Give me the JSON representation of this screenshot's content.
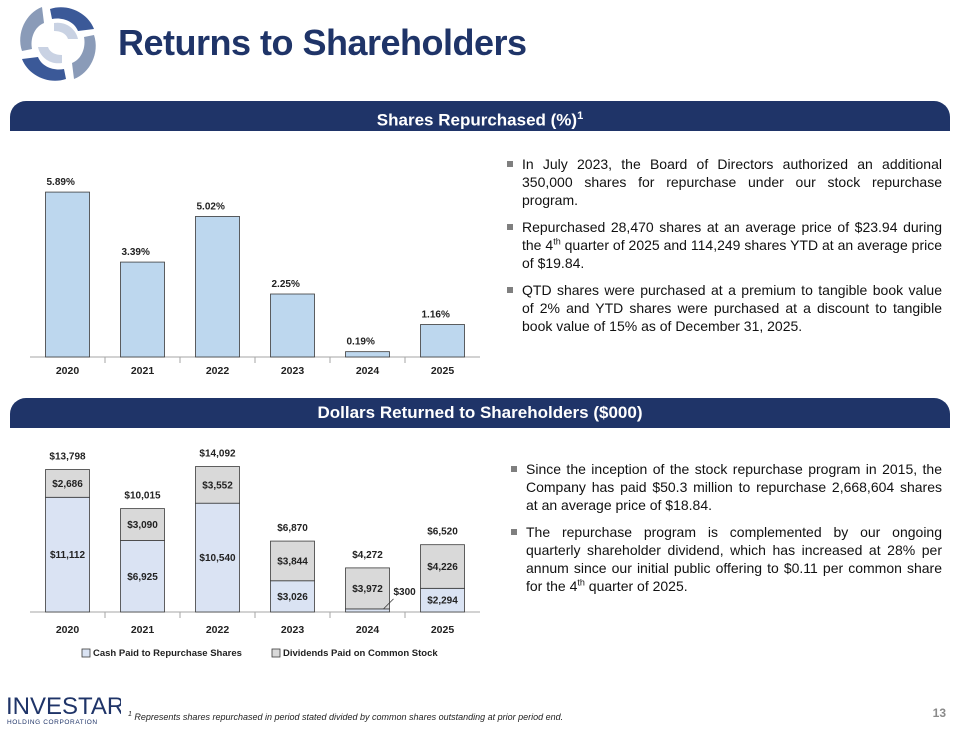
{
  "header": {
    "title": "Returns to Shareholders"
  },
  "section1": {
    "banner": "Shares Repurchased (%)",
    "banner_sup": "1",
    "bullets": [
      {
        "pre": "In July 2023, the Board of Directors authorized an additional 350,000 shares for repurchase under our stock repurchase program.",
        "sup": "",
        "post": ""
      },
      {
        "pre": "Repurchased 28,470 shares at an average price of $23.94 during the 4",
        "sup": "th",
        "post": " quarter of 2025 and 114,249 shares YTD at an average price of $19.84."
      },
      {
        "pre": "QTD shares were purchased at a premium to tangible book value of 2% and YTD shares were purchased at a discount to tangible book value of 15% as of December 31, 2025.",
        "sup": "",
        "post": ""
      }
    ]
  },
  "section2": {
    "banner": "Dollars Returned to Shareholders ($000)",
    "bullets": [
      {
        "pre": "Since the inception of the stock repurchase program in 2015, the Company has paid $50.3 million to repurchase 2,668,604 shares at an average price of $18.84.",
        "sup": "",
        "post": ""
      },
      {
        "pre": "The repurchase program is complemented by our ongoing quarterly shareholder dividend, which has increased at 28% per annum since our initial public offering to $0.11 per common share for the 4",
        "sup": "th",
        "post": " quarter of 2025."
      }
    ]
  },
  "footer": {
    "logo_text": "INVESTAR",
    "logo_sub": "HOLDING CORPORATION",
    "footnote_sup": "1",
    "footnote": " Represents shares repurchased in period stated divided by common shares outstanding at prior period end.",
    "page_number": "13"
  },
  "colors": {
    "navy": "#1f3468",
    "bar_blue": "#bdd7ee",
    "bar_cash": "#dae3f3",
    "bar_div": "#d9d9d9"
  },
  "chart_data": [
    {
      "type": "bar",
      "title": "Shares Repurchased (%)",
      "categories": [
        "2020",
        "2021",
        "2022",
        "2023",
        "2024",
        "2025"
      ],
      "values": [
        5.89,
        3.39,
        5.02,
        2.25,
        0.19,
        1.16
      ],
      "labels": [
        "5.89%",
        "3.39%",
        "5.02%",
        "2.25%",
        "0.19%",
        "1.16%"
      ],
      "ylim": [
        0,
        6.5
      ]
    },
    {
      "type": "bar",
      "stacked": true,
      "title": "Dollars Returned to Shareholders ($000)",
      "categories": [
        "2020",
        "2021",
        "2022",
        "2023",
        "2024",
        "2025"
      ],
      "series": [
        {
          "name": "Cash Paid to Repurchase Shares",
          "values": [
            11112,
            6925,
            10540,
            3026,
            300,
            2294
          ],
          "labels": [
            "$11,112",
            "$6,925",
            "$10,540",
            "$3,026",
            "$300",
            "$2,294"
          ]
        },
        {
          "name": "Dividends Paid on Common Stock",
          "values": [
            2686,
            3090,
            3552,
            3844,
            3972,
            4226
          ],
          "labels": [
            "$2,686",
            "$3,090",
            "$3,552",
            "$3,844",
            "$3,972",
            "$4,226"
          ]
        }
      ],
      "totals": [
        "$13,798",
        "$10,015",
        "$14,092",
        "$6,870",
        "$4,272",
        "$6,520"
      ],
      "ylim": [
        0,
        15500
      ]
    }
  ]
}
